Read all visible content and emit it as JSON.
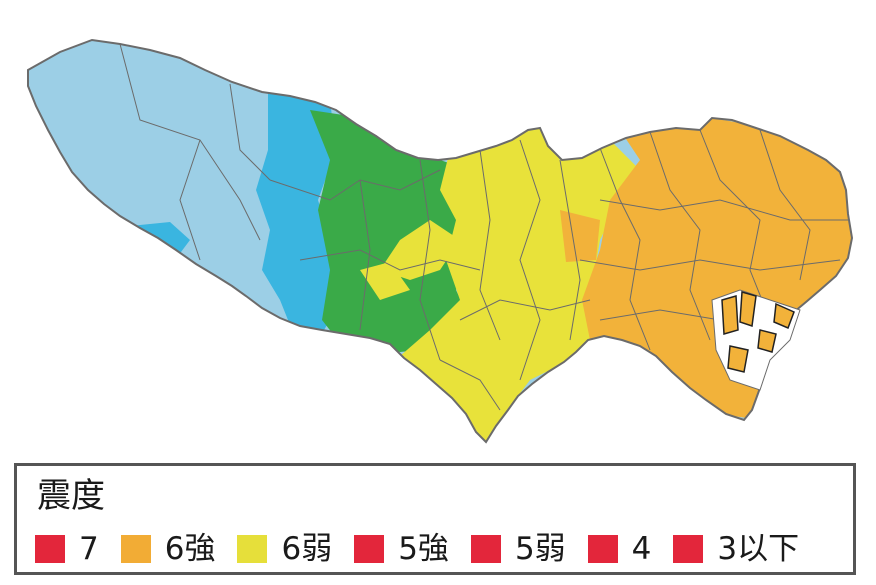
{
  "colors": {
    "level_3_or_less": "#9ccfe6",
    "level_4": "#3ab5e0",
    "level_5_weak": "#3aaa48",
    "level_5_strong": "#e8e23a",
    "level_6_weak": "#f2b23a",
    "border": "#6b6b6b",
    "legend_red": "#e3263b",
    "legend_orange": "#f2ac35",
    "legend_yellow": "#e6df3a"
  },
  "legend": {
    "title": "震度",
    "items": [
      {
        "label": "7",
        "color": "#e3263b",
        "icon": "square-swatch"
      },
      {
        "label": "6強",
        "color": "#f2ac35",
        "icon": "square-swatch"
      },
      {
        "label": "6弱",
        "color": "#e6df3a",
        "icon": "square-swatch"
      },
      {
        "label": "5強",
        "color": "#e3263b",
        "icon": "square-swatch"
      },
      {
        "label": "5弱",
        "color": "#e3263b",
        "icon": "square-swatch"
      },
      {
        "label": "4",
        "color": "#e3263b",
        "icon": "square-swatch"
      },
      {
        "label": "3以下",
        "color": "#e3263b",
        "icon": "square-swatch"
      }
    ]
  }
}
